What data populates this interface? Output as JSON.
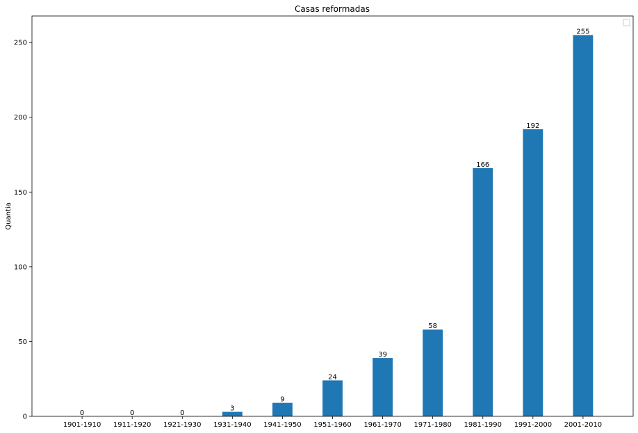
{
  "chart_data": {
    "type": "bar",
    "title": "Casas reformadas",
    "xlabel": "",
    "ylabel": "Quantia",
    "categories": [
      "1901-1910",
      "1911-1920",
      "1921-1930",
      "1931-1940",
      "1941-1950",
      "1951-1960",
      "1961-1970",
      "1971-1980",
      "1981-1990",
      "1991-2000",
      "2001-2010"
    ],
    "values": [
      0,
      0,
      0,
      3,
      9,
      24,
      39,
      58,
      166,
      192,
      255
    ],
    "yticks": [
      0,
      50,
      100,
      150,
      200,
      250
    ],
    "ylim": [
      0,
      267.75
    ],
    "bar_color": "#1f77b4",
    "grid": false,
    "legend": {
      "position": "upper right",
      "entries": []
    }
  }
}
